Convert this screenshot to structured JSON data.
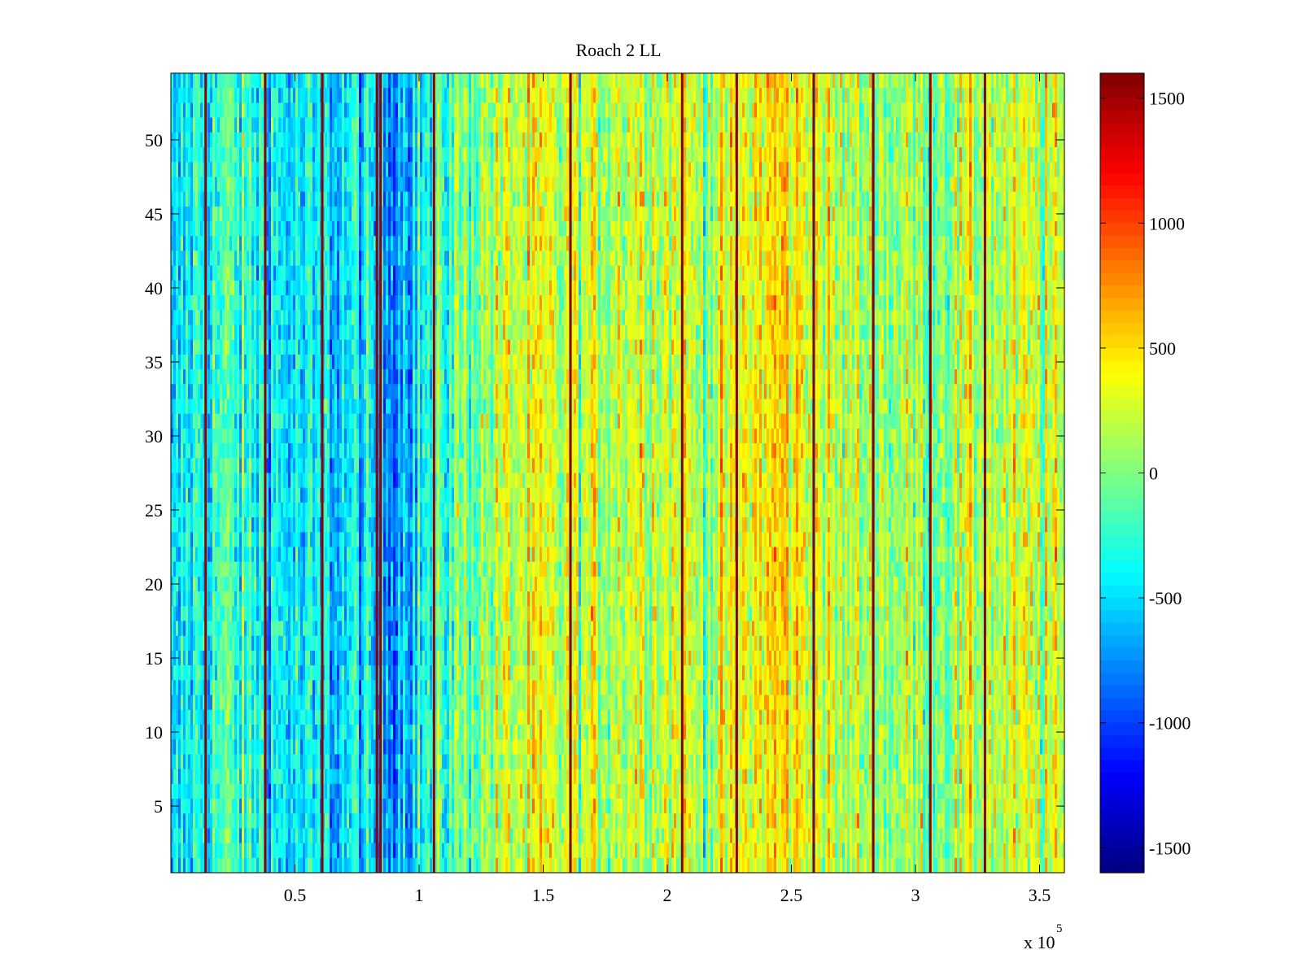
{
  "chart_data": {
    "type": "heatmap",
    "title": "Roach 2 LL",
    "xlabel": "",
    "ylabel": "",
    "x_range": [
      0,
      360000
    ],
    "y_range": [
      0.5,
      54.5
    ],
    "rows": 54,
    "x_ticks": [
      {
        "value": 50000,
        "label": "0.5"
      },
      {
        "value": 100000,
        "label": "1"
      },
      {
        "value": 150000,
        "label": "1.5"
      },
      {
        "value": 200000,
        "label": "2"
      },
      {
        "value": 250000,
        "label": "2.5"
      },
      {
        "value": 300000,
        "label": "3"
      },
      {
        "value": 350000,
        "label": "3.5"
      }
    ],
    "x_exponent_base": "x 10",
    "x_exponent_power": "5",
    "y_ticks": [
      {
        "value": 5,
        "label": "5"
      },
      {
        "value": 10,
        "label": "10"
      },
      {
        "value": 15,
        "label": "15"
      },
      {
        "value": 20,
        "label": "20"
      },
      {
        "value": 25,
        "label": "25"
      },
      {
        "value": 30,
        "label": "30"
      },
      {
        "value": 35,
        "label": "35"
      },
      {
        "value": 40,
        "label": "40"
      },
      {
        "value": 45,
        "label": "45"
      },
      {
        "value": 50,
        "label": "50"
      }
    ],
    "colorbar": {
      "colormap": "jet",
      "range": [
        -1600,
        1600
      ],
      "ticks": [
        {
          "value": 1500,
          "label": "1500"
        },
        {
          "value": 1000,
          "label": "1000"
        },
        {
          "value": 500,
          "label": "500"
        },
        {
          "value": 0,
          "label": "0"
        },
        {
          "value": -500,
          "label": "-500"
        },
        {
          "value": -1000,
          "label": "-1000"
        },
        {
          "value": -1500,
          "label": "-1500"
        }
      ]
    },
    "column_profile": [
      {
        "x": 0,
        "value": -750
      },
      {
        "x": 5000,
        "value": -450
      },
      {
        "x": 20000,
        "value": -200
      },
      {
        "x": 40000,
        "value": -400
      },
      {
        "x": 60000,
        "value": -550
      },
      {
        "x": 75000,
        "value": -450
      },
      {
        "x": 85000,
        "value": -700
      },
      {
        "x": 95000,
        "value": -500
      },
      {
        "x": 105000,
        "value": -300
      },
      {
        "x": 120000,
        "value": 0
      },
      {
        "x": 140000,
        "value": 250
      },
      {
        "x": 165000,
        "value": 150
      },
      {
        "x": 190000,
        "value": 350
      },
      {
        "x": 215000,
        "value": 150
      },
      {
        "x": 245000,
        "value": 500
      },
      {
        "x": 270000,
        "value": 150
      },
      {
        "x": 300000,
        "value": 80
      },
      {
        "x": 330000,
        "value": 200
      },
      {
        "x": 360000,
        "value": 150
      }
    ],
    "noise_amplitude": 380,
    "stripe_value": 1550,
    "stripe_positions": [
      14000,
      38000,
      61000,
      83000,
      84500,
      106000,
      161000,
      206000,
      228000,
      259000,
      283000,
      306000,
      328000
    ]
  }
}
